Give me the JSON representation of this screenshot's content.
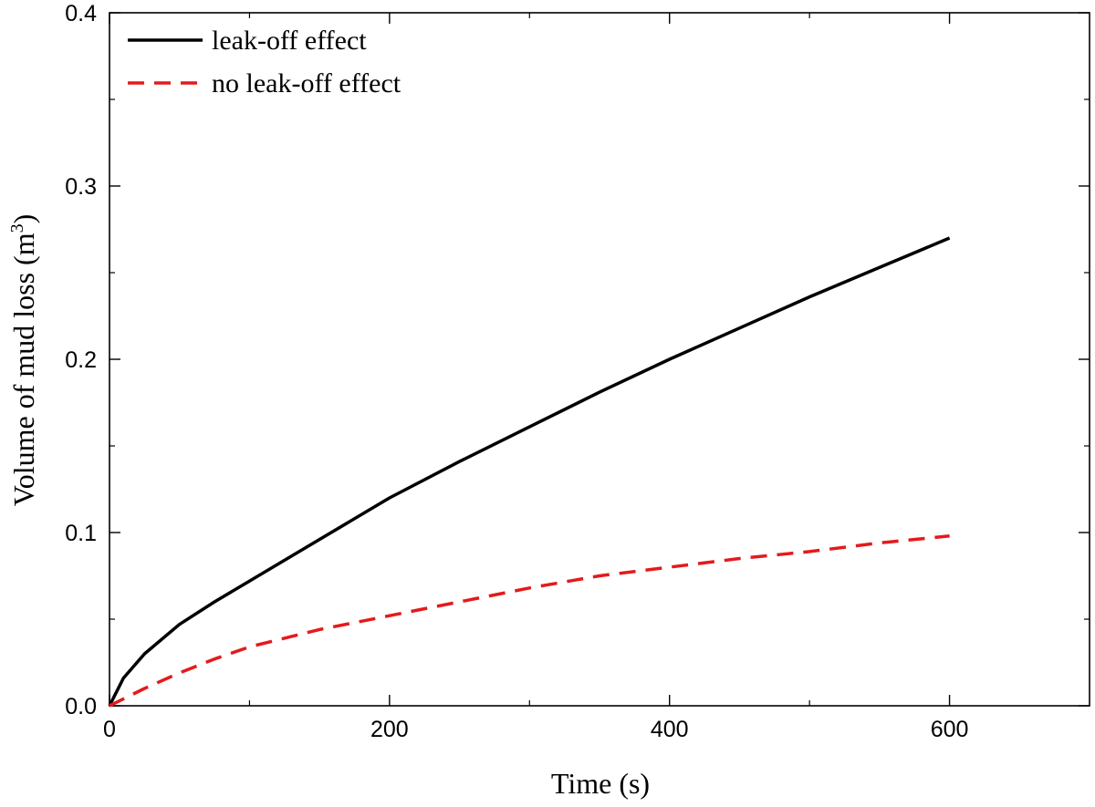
{
  "chart_data": {
    "type": "line",
    "title": "",
    "xlabel": "Time (s)",
    "ylabel_main": "Volume of mud loss (m",
    "ylabel_sup": "3",
    "ylabel_close": ")",
    "xlim": [
      0,
      700
    ],
    "ylim": [
      0,
      0.4
    ],
    "xticks": [
      0,
      200,
      400,
      600
    ],
    "xtick_labels": [
      "0",
      "200",
      "400",
      "600"
    ],
    "yticks": [
      0,
      0.1,
      0.2,
      0.3,
      0.4
    ],
    "ytick_labels": [
      "0.0",
      "0.1",
      "0.2",
      "0.3",
      "0.4"
    ],
    "grid": false,
    "legend_position": "top-left",
    "series": [
      {
        "name": "leak-off effect",
        "color": "#000000",
        "style": "solid",
        "x": [
          0,
          10,
          25,
          50,
          75,
          100,
          150,
          200,
          250,
          300,
          350,
          400,
          450,
          500,
          550,
          600
        ],
        "y": [
          0,
          0.016,
          0.03,
          0.047,
          0.06,
          0.072,
          0.096,
          0.12,
          0.141,
          0.161,
          0.181,
          0.2,
          0.218,
          0.236,
          0.253,
          0.27
        ]
      },
      {
        "name": "no leak-off effect",
        "color": "#e41a1c",
        "style": "dashed",
        "x": [
          0,
          10,
          25,
          50,
          75,
          100,
          150,
          200,
          250,
          300,
          350,
          400,
          450,
          500,
          550,
          600
        ],
        "y": [
          0,
          0.004,
          0.01,
          0.019,
          0.027,
          0.034,
          0.044,
          0.052,
          0.06,
          0.068,
          0.075,
          0.08,
          0.085,
          0.089,
          0.094,
          0.098
        ]
      }
    ]
  }
}
